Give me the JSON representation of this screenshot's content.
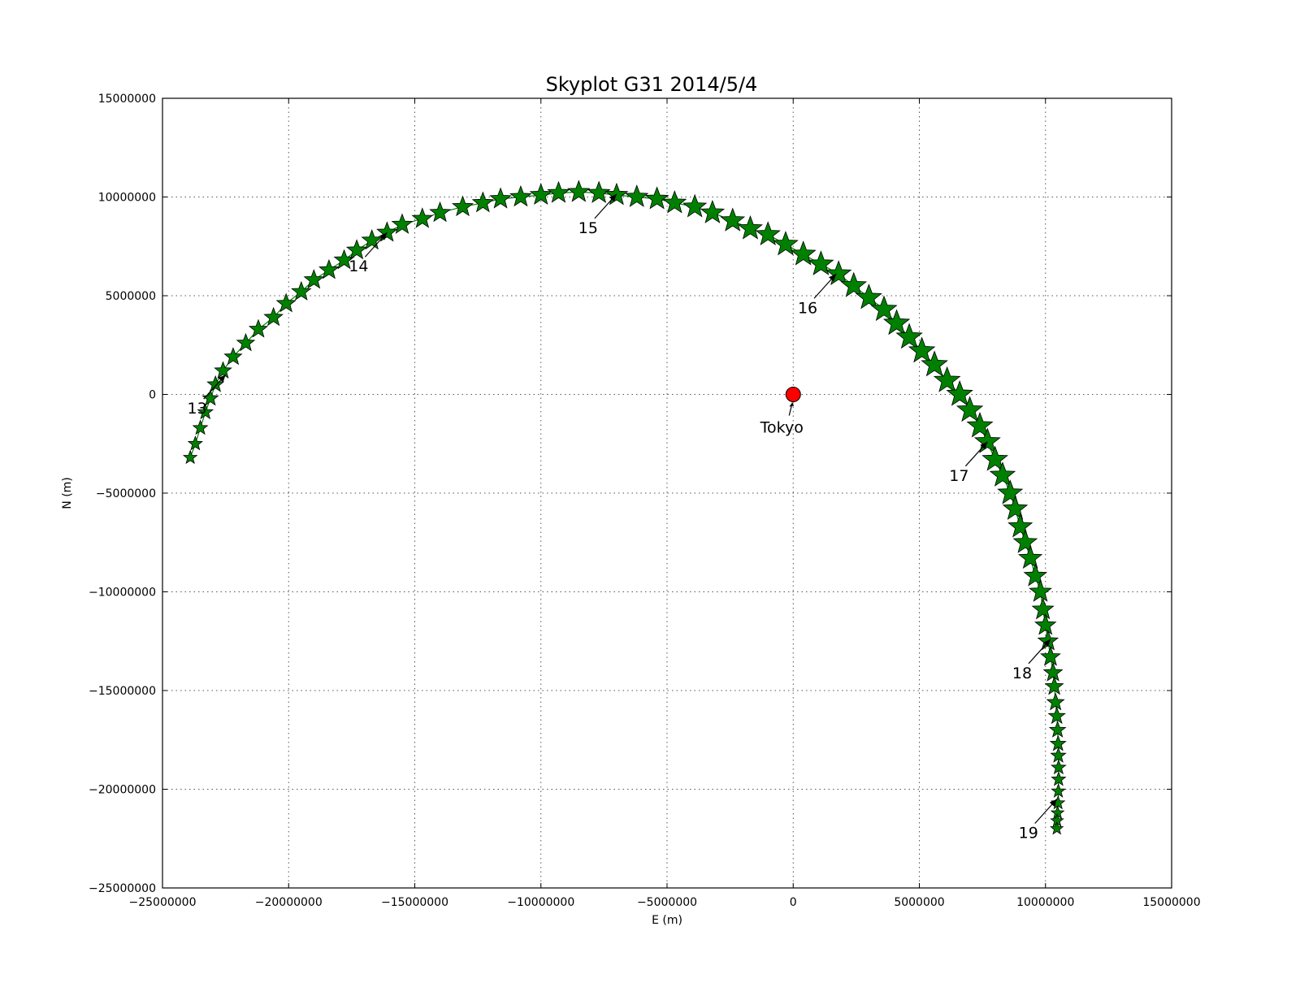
{
  "chart_data": {
    "type": "scatter",
    "title": "Skyplot G31 2014/5/4",
    "xlabel": "E (m)",
    "ylabel": "N (m)",
    "xlim": [
      -25000000,
      15000000
    ],
    "ylim": [
      -25000000,
      15000000
    ],
    "xticks": [
      -25000000,
      -20000000,
      -15000000,
      -10000000,
      -5000000,
      0,
      5000000,
      10000000,
      15000000
    ],
    "yticks": [
      -25000000,
      -20000000,
      -15000000,
      -10000000,
      -5000000,
      0,
      5000000,
      10000000,
      15000000
    ],
    "xtick_labels": [
      "−25000000",
      "−20000000",
      "−15000000",
      "−10000000",
      "−5000000",
      "0",
      "5000000",
      "10000000",
      "15000000"
    ],
    "ytick_labels": [
      "−25000000",
      "−20000000",
      "−15000000",
      "−10000000",
      "−5000000",
      "0",
      "5000000",
      "10000000",
      "15000000"
    ],
    "grid": true,
    "colors": {
      "track": "#008000",
      "station": "#ff0000"
    },
    "track_markers": "star",
    "series": [
      {
        "x": [
          -23900000,
          -23700000,
          -23500000,
          -23300000,
          -23100000,
          -22900000,
          -22600000,
          -22200000,
          -21700000,
          -21200000,
          -20600000,
          -20100000,
          -19500000,
          -19000000,
          -18400000,
          -17800000,
          -17300000,
          -16700000,
          -16100000,
          -15500000,
          -14700000,
          -14000000,
          -13100000,
          -12300000,
          -11600000,
          -10800000,
          -10000000,
          -9300000,
          -8500000,
          -7700000,
          -7000000,
          -6200000,
          -5400000,
          -4700000,
          -3900000,
          -3200000,
          -2400000,
          -1700000,
          -1000000,
          -300000,
          400000,
          1100000,
          1800000,
          2400000,
          3000000,
          3600000,
          4100000,
          4600000,
          5100000,
          5600000,
          6100000,
          6600000,
          7000000,
          7400000,
          7700000,
          8000000,
          8300000,
          8600000,
          8800000,
          9000000,
          9200000,
          9400000,
          9600000,
          9800000,
          9900000,
          10000000,
          10100000,
          10200000,
          10300000,
          10350000,
          10400000,
          10450000,
          10480000,
          10500000,
          10510000,
          10520000,
          10520000,
          10510000,
          10500000,
          10480000,
          10460000,
          10450000
        ],
        "y": [
          -3200000,
          -2500000,
          -1700000,
          -900000,
          -200000,
          500000,
          1200000,
          1900000,
          2600000,
          3300000,
          3900000,
          4600000,
          5200000,
          5800000,
          6300000,
          6800000,
          7300000,
          7800000,
          8200000,
          8600000,
          8900000,
          9200000,
          9500000,
          9700000,
          9900000,
          10000000,
          10100000,
          10200000,
          10250000,
          10200000,
          10100000,
          10000000,
          9900000,
          9700000,
          9500000,
          9200000,
          8800000,
          8400000,
          8100000,
          7600000,
          7100000,
          6600000,
          6100000,
          5500000,
          4900000,
          4300000,
          3600000,
          2900000,
          2200000,
          1500000,
          700000,
          0,
          -800000,
          -1600000,
          -2400000,
          -3300000,
          -4100000,
          -5000000,
          -5800000,
          -6700000,
          -7500000,
          -8300000,
          -9200000,
          -10000000,
          -10900000,
          -11700000,
          -12500000,
          -13300000,
          -14100000,
          -14800000,
          -15600000,
          -16300000,
          -17000000,
          -17700000,
          -18300000,
          -18900000,
          -19500000,
          -20100000,
          -20700000,
          -21200000,
          -21600000,
          -22000000
        ],
        "sizes": [
          0.34,
          0.37,
          0.4,
          0.43,
          0.46,
          0.49,
          0.52,
          0.55,
          0.57,
          0.59,
          0.61,
          0.63,
          0.64,
          0.65,
          0.66,
          0.67,
          0.68,
          0.69,
          0.69,
          0.7,
          0.7,
          0.7,
          0.71,
          0.72,
          0.73,
          0.74,
          0.76,
          0.77,
          0.78,
          0.79,
          0.8,
          0.81,
          0.83,
          0.84,
          0.85,
          0.86,
          0.88,
          0.89,
          0.9,
          0.92,
          0.93,
          0.94,
          0.95,
          0.96,
          0.97,
          0.98,
          0.99,
          0.99,
          1.0,
          1.0,
          1.0,
          0.99,
          0.99,
          0.98,
          0.97,
          0.96,
          0.95,
          0.93,
          0.91,
          0.89,
          0.87,
          0.85,
          0.82,
          0.79,
          0.76,
          0.73,
          0.69,
          0.66,
          0.62,
          0.58,
          0.54,
          0.51,
          0.48,
          0.45,
          0.42,
          0.39,
          0.37,
          0.35,
          0.33,
          0.31,
          0.3,
          0.29
        ]
      }
    ],
    "station": {
      "label": "Tokyo",
      "x": 0,
      "y": 0
    },
    "annotations": [
      {
        "text": "13",
        "x": -22500000,
        "y": 1000000
      },
      {
        "text": "14",
        "x": -16100000,
        "y": 8200000
      },
      {
        "text": "15",
        "x": -7000000,
        "y": 10150000
      },
      {
        "text": "16",
        "x": 1700000,
        "y": 6100000
      },
      {
        "text": "17",
        "x": 7700000,
        "y": -2400000
      },
      {
        "text": "18",
        "x": 10200000,
        "y": -12400000
      },
      {
        "text": "19",
        "x": 10450000,
        "y": -20500000
      }
    ]
  }
}
